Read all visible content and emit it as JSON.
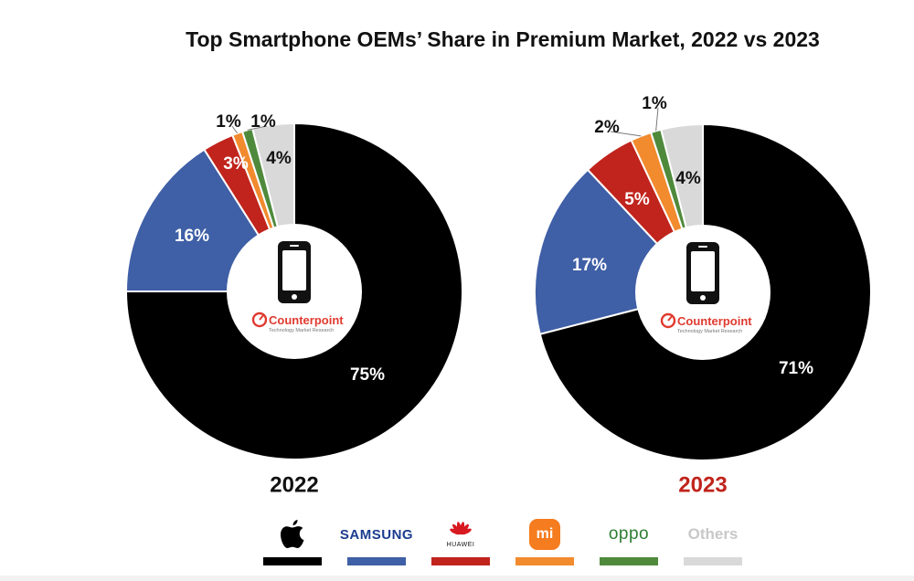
{
  "chart_data": {
    "type": "pie",
    "title": "Top Smartphone OEMs’ Share in Premium Market, 2022 vs 2023",
    "charts": [
      {
        "year": "2022",
        "label_color": "#111111",
        "slices": [
          {
            "name": "Apple",
            "value": 75,
            "label": "75%",
            "color": "#000000"
          },
          {
            "name": "Samsung",
            "value": 16,
            "label": "16%",
            "color": "#3f5fa6"
          },
          {
            "name": "Huawei",
            "value": 3,
            "label": "3%",
            "color": "#c0241c"
          },
          {
            "name": "Xiaomi",
            "value": 1,
            "label": "1%",
            "color": "#f28a2e"
          },
          {
            "name": "OPPO",
            "value": 1,
            "label": "1%",
            "color": "#4f8a3c"
          },
          {
            "name": "Others",
            "value": 4,
            "label": "4%",
            "color": "#d9d9d9"
          }
        ]
      },
      {
        "year": "2023",
        "label_color": "#c0241c",
        "slices": [
          {
            "name": "Apple",
            "value": 71,
            "label": "71%",
            "color": "#000000"
          },
          {
            "name": "Samsung",
            "value": 17,
            "label": "17%",
            "color": "#3f5fa6"
          },
          {
            "name": "Huawei",
            "value": 5,
            "label": "5%",
            "color": "#c0241c"
          },
          {
            "name": "Xiaomi",
            "value": 2,
            "label": "2%",
            "color": "#f28a2e"
          },
          {
            "name": "OPPO",
            "value": 1,
            "label": "1%",
            "color": "#4f8a3c"
          },
          {
            "name": "Others",
            "value": 4,
            "label": "4%",
            "color": "#d9d9d9"
          }
        ]
      }
    ],
    "legend_placement": "bottom",
    "center_logo": {
      "brand": "Counterpoint",
      "tagline": "Technology Market Research",
      "icon": "smartphone-icon",
      "color": "#e03a2f"
    }
  },
  "legend": {
    "items": [
      {
        "name": "Apple",
        "logo": "apple-logo-icon",
        "color": "#000000"
      },
      {
        "name": "Samsung",
        "logo_text": "SAMSUNG",
        "color": "#3f5fa6"
      },
      {
        "name": "Huawei",
        "logo_text": "HUAWEI",
        "color": "#c0241c"
      },
      {
        "name": "Xiaomi",
        "logo_text": "mi",
        "color": "#f28a2e"
      },
      {
        "name": "OPPO",
        "logo_text": "oppo",
        "color": "#4f8a3c"
      },
      {
        "name": "Others",
        "logo_text": "Others",
        "color": "#d9d9d9"
      }
    ]
  }
}
